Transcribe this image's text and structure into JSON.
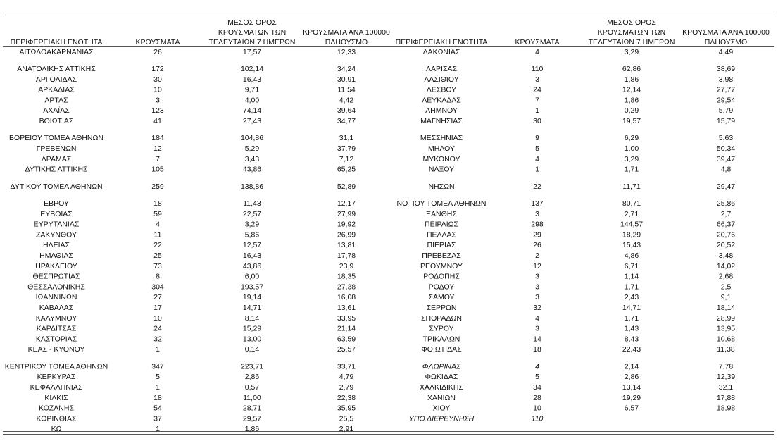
{
  "left": {
    "header": [
      [
        "ΠΕΡΙΦΕΡΕΙΑΚΗ ΕΝΟΤΗΤΑ"
      ],
      [
        "ΚΡΟΥΣΜΑΤΑ"
      ],
      [
        "ΜΕΣΟΣ ΟΡΟΣ",
        "ΚΡΟΥΣΜΑΤΩΝ ΤΩΝ",
        "ΤΕΛΕΥΤΑΙΩΝ 7 ΗΜΕΡΩΝ"
      ],
      [
        "ΚΡΟΥΣΜΑΤΑ ΑΝΑ 100000",
        "ΠΛΗΘΥΣΜΟ"
      ]
    ],
    "blocks": [
      [
        [
          "ΑΙΤΩΛΟΑΚΑΡΝΑΝΙΑΣ",
          "26",
          "17,57",
          "12,33"
        ]
      ],
      [
        [
          "ΑΝΑΤΟΛΙΚΗΣ ΑΤΤΙΚΗΣ",
          "172",
          "102,14",
          "34,24"
        ],
        [
          "ΑΡΓΟΛΙΔΑΣ",
          "30",
          "16,43",
          "30,91"
        ],
        [
          "ΑΡΚΑΔΙΑΣ",
          "10",
          "9,71",
          "11,54"
        ],
        [
          "ΑΡΤΑΣ",
          "3",
          "4,00",
          "4,42"
        ],
        [
          "ΑΧΑΪΑΣ",
          "123",
          "74,14",
          "39,64"
        ],
        [
          "ΒΟΙΩΤΙΑΣ",
          "41",
          "27,43",
          "34,77"
        ]
      ],
      [
        [
          "ΒΟΡΕΙΟΥ ΤΟΜΕΑ ΑΘΗΝΩΝ",
          "184",
          "104,86",
          "31,1"
        ],
        [
          "ΓΡΕΒΕΝΩΝ",
          "12",
          "5,29",
          "37,79"
        ],
        [
          "ΔΡΑΜΑΣ",
          "7",
          "3,43",
          "7,12"
        ],
        [
          "ΔΥΤΙΚΗΣ ΑΤΤΙΚΗΣ",
          "105",
          "43,86",
          "65,25"
        ]
      ],
      [
        [
          "ΔΥΤΙΚΟΥ ΤΟΜΕΑ ΑΘΗΝΩΝ",
          "259",
          "138,86",
          "52,89"
        ]
      ],
      [
        [
          "ΕΒΡΟΥ",
          "18",
          "11,43",
          "12,17"
        ],
        [
          "ΕΥΒΟΙΑΣ",
          "59",
          "22,57",
          "27,99"
        ],
        [
          "ΕΥΡΥΤΑΝΙΑΣ",
          "4",
          "3,29",
          "19,92"
        ],
        [
          "ΖΑΚΥΝΘΟΥ",
          "11",
          "5,86",
          "26,99"
        ],
        [
          "ΗΛΕΙΑΣ",
          "22",
          "12,57",
          "13,81"
        ],
        [
          "ΗΜΑΘΙΑΣ",
          "25",
          "16,43",
          "17,78"
        ],
        [
          "ΗΡΑΚΛΕΙΟΥ",
          "73",
          "43,86",
          "23,9"
        ],
        [
          "ΘΕΣΠΡΩΤΙΑΣ",
          "8",
          "6,00",
          "18,35"
        ],
        [
          "ΘΕΣΣΑΛΟΝΙΚΗΣ",
          "304",
          "193,57",
          "27,38"
        ],
        [
          "ΙΩΑΝΝΙΝΩΝ",
          "27",
          "19,14",
          "16,08"
        ],
        [
          "ΚΑΒΑΛΑΣ",
          "17",
          "14,71",
          "13,61"
        ],
        [
          "ΚΑΛΥΜΝΟΥ",
          "10",
          "8,14",
          "33,95"
        ],
        [
          "ΚΑΡΔΙΤΣΑΣ",
          "24",
          "15,29",
          "21,14"
        ],
        [
          "ΚΑΣΤΟΡΙΑΣ",
          "32",
          "13,00",
          "63,59"
        ],
        [
          "ΚΕΑΣ - ΚΥΘΝΟΥ",
          "1",
          "0,14",
          "25,57"
        ]
      ],
      [
        [
          "ΚΕΝΤΡΙΚΟΥ ΤΟΜΕΑ ΑΘΗΝΩΝ",
          "347",
          "223,71",
          "33,71"
        ],
        [
          "ΚΕΡΚΥΡΑΣ",
          "5",
          "2,86",
          "4,79"
        ],
        [
          "ΚΕΦΑΛΛΗΝΙΑΣ",
          "1",
          "0,57",
          "2,79"
        ],
        [
          "ΚΙΛΚΙΣ",
          "18",
          "11,00",
          "22,38"
        ],
        [
          "ΚΟΖΑΝΗΣ",
          "54",
          "28,71",
          "35,95"
        ],
        [
          "ΚΟΡΙΝΘΙΑΣ",
          "37",
          "29,57",
          "25,5"
        ],
        [
          "ΚΩ",
          "1",
          "1,86",
          "2,91"
        ]
      ]
    ]
  },
  "right": {
    "header": [
      [
        "ΠΕΡΙΦΕΡΕΙΑΚΗ ΕΝΟΤΗΤΑ"
      ],
      [
        "ΚΡΟΥΣΜΑΤΑ"
      ],
      [
        "ΜΕΣΟΣ ΟΡΟΣ",
        "ΚΡΟΥΣΜΑΤΩΝ ΤΩΝ",
        "ΤΕΛΕΥΤΑΙΩΝ 7 ΗΜΕΡΩΝ"
      ],
      [
        "ΚΡΟΥΣΜΑΤΑ ΑΝΑ 100000",
        "ΠΛΗΘΥΣΜΟ"
      ]
    ],
    "blocks": [
      [
        [
          "ΛΑΚΩΝΙΑΣ",
          "4",
          "3,29",
          "4,49"
        ]
      ],
      [
        [
          "ΛΑΡΙΣΑΣ",
          "110",
          "62,86",
          "38,69"
        ],
        [
          "ΛΑΣΙΘΙΟΥ",
          "3",
          "1,86",
          "3,98"
        ],
        [
          "ΛΕΣΒΟΥ",
          "24",
          "12,14",
          "27,77"
        ],
        [
          "ΛΕΥΚΑΔΑΣ",
          "7",
          "1,86",
          "29,54"
        ],
        [
          "ΛΗΜΝΟΥ",
          "1",
          "0,29",
          "5,79"
        ],
        [
          "ΜΑΓΝΗΣΙΑΣ",
          "30",
          "19,57",
          "15,79"
        ]
      ],
      [
        [
          "ΜΕΣΣΗΝΙΑΣ",
          "9",
          "6,29",
          "5,63"
        ],
        [
          "ΜΗΛΟΥ",
          "5",
          "1,00",
          "50,34"
        ],
        [
          "ΜΥΚΟΝΟΥ",
          "4",
          "3,29",
          "39,47"
        ],
        [
          "ΝΑΞΟΥ",
          "1",
          "1,71",
          "4,8"
        ]
      ],
      [
        [
          "ΝΗΣΩΝ",
          "22",
          "11,71",
          "29,47"
        ]
      ],
      [
        [
          "ΝΟΤΙΟΥ ΤΟΜΕΑ ΑΘΗΝΩΝ",
          "137",
          "80,71",
          "25,86"
        ],
        [
          "ΞΑΝΘΗΣ",
          "3",
          "2,71",
          "2,7"
        ],
        [
          "ΠΕΙΡΑΙΩΣ",
          "298",
          "144,57",
          "66,37"
        ],
        [
          "ΠΕΛΛΑΣ",
          "29",
          "18,29",
          "20,76"
        ],
        [
          "ΠΙΕΡΙΑΣ",
          "26",
          "15,43",
          "20,52"
        ],
        [
          "ΠΡΕΒΕΖΑΣ",
          "2",
          "4,86",
          "3,48"
        ],
        [
          "ΡΕΘΥΜΝΟΥ",
          "12",
          "6,71",
          "14,02"
        ],
        [
          "ΡΟΔΟΠΗΣ",
          "3",
          "1,14",
          "2,68"
        ],
        [
          "ΡΟΔΟΥ",
          "3",
          "1,71",
          "2,5"
        ],
        [
          "ΣΑΜΟΥ",
          "3",
          "2,43",
          "9,1"
        ],
        [
          "ΣΕΡΡΩΝ",
          "32",
          "14,71",
          "18,14"
        ],
        [
          "ΣΠΟΡΑΔΩΝ",
          "4",
          "1,71",
          "28,99"
        ],
        [
          "ΣΥΡΟΥ",
          "3",
          "1,43",
          "13,95"
        ],
        [
          "ΤΡΙΚΑΛΩΝ",
          "14",
          "8,43",
          "10,68"
        ],
        [
          "ΦΘΙΩΤΙΔΑΣ",
          "18",
          "22,43",
          "11,38"
        ]
      ],
      [
        [
          "ΦΛΩΡΙΝΑΣ",
          "4",
          "2,14",
          "7,78"
        ],
        [
          "ΦΩΚΙΔΑΣ",
          "5",
          "2,86",
          "12,39"
        ],
        [
          "ΧΑΛΚΙΔΙΚΗΣ",
          "34",
          "13,14",
          "32,1"
        ],
        [
          "ΧΑΝΙΩΝ",
          "28",
          "19,29",
          "17,88"
        ],
        [
          "ΧΙΟΥ",
          "10",
          "6,57",
          "18,98"
        ],
        [
          "ΥΠΟ ΔΙΕΡΕΥΝΗΣΗ",
          "110"
        ]
      ]
    ]
  }
}
